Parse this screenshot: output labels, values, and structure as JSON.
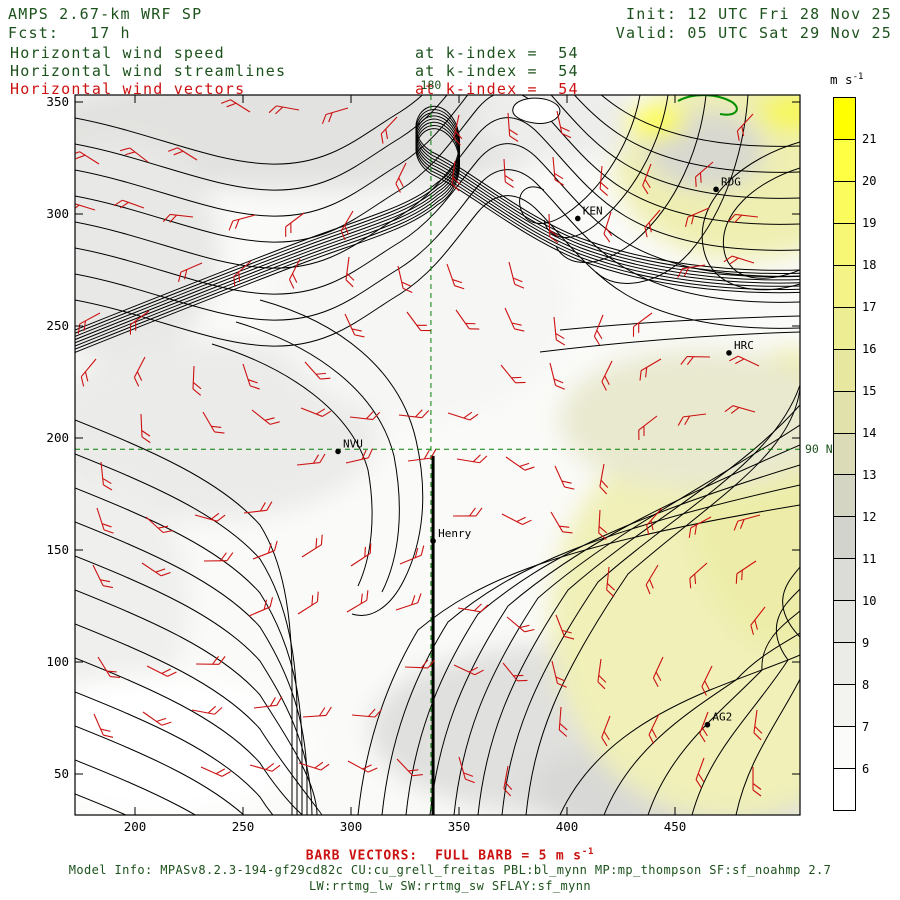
{
  "header": {
    "model_title": "AMPS 2.67-km WRF SP",
    "fcst_label": "Fcst:   17 h",
    "init_label": "Init: 12 UTC Fri 28 Nov 25",
    "valid_label": "Valid: 05 UTC Sat 29 Nov 25",
    "fields": [
      {
        "label": "Horizontal wind speed",
        "at_text": "at k-index =  54",
        "color": "#1c521c"
      },
      {
        "label": "Horizontal wind streamlines",
        "at_text": "at k-index =  54",
        "color": "#1c521c"
      },
      {
        "label": "Horizontal wind vectors",
        "at_text": "at k-index =  54",
        "color": "#cc1111"
      }
    ]
  },
  "colorbar": {
    "units_label": "m s",
    "units_exp": "-1",
    "tick_labels": [
      "6",
      "7",
      "8",
      "9",
      "10",
      "11",
      "12",
      "13",
      "14",
      "15",
      "16",
      "17",
      "18",
      "19",
      "20",
      "21"
    ],
    "segment_colors_bottom_to_top": [
      "#ffffff",
      "#fbfbf9",
      "#f3f3ef",
      "#ebebe7",
      "#e3e3df",
      "#dbdbd7",
      "#d3d3cd",
      "#d5d5c3",
      "#dbdbb7",
      "#e1e1ab",
      "#e7e79f",
      "#eded93",
      "#f3f387",
      "#f7f775",
      "#fbfb5d",
      "#ffff43",
      "#ffff00"
    ]
  },
  "footer": {
    "barb_legend_prefix": "BARB VECTORS:  FULL BARB = 5 m s",
    "barb_legend_exp": "-1",
    "model_info_line1": "Model Info: MPASv8.2.3-194-gf29cd82c CU:cu_grell_freitas PBL:bl_mynn MP:mp_thompson SF:sf_noahmp 2.7",
    "model_info_line2": "LW:rrtmg_lw SW:rrtmg_sw SFLAY:sf_mynn"
  },
  "chart_data": {
    "type": "map",
    "subtype": "wind-speed-shading-streamlines-barbs",
    "title": "AMPS 2.67-km WRF SP Horizontal wind at k-index = 54",
    "k_index": 54,
    "forecast_hour": 17,
    "init_time": "12 UTC Fri 28 Nov 25",
    "valid_time": "05 UTC Sat 29 Nov 25",
    "x_ticks": [
      200,
      250,
      300,
      350,
      400,
      450
    ],
    "y_ticks": [
      50,
      100,
      150,
      200,
      250,
      300,
      350
    ],
    "x_range": [
      172,
      508
    ],
    "y_range": [
      31,
      353
    ],
    "colorbar_levels_ms": [
      6,
      7,
      8,
      9,
      10,
      11,
      12,
      13,
      14,
      15,
      16,
      17,
      18,
      19,
      20,
      21
    ],
    "full_barb_ms": 5,
    "reference_lines": [
      {
        "label": "180",
        "orientation": "vertical",
        "x_grid": 337
      },
      {
        "label": "90 N",
        "orientation": "horizontal",
        "y_grid": 195
      }
    ],
    "cross_section_line": {
      "x_grid": 338,
      "y_grid_from": 31,
      "y_grid_to": 192
    },
    "stations": [
      {
        "name": "KEN",
        "x_grid": 405,
        "y_grid": 298
      },
      {
        "name": "RDG",
        "x_grid": 469,
        "y_grid": 311
      },
      {
        "name": "HRC",
        "x_grid": 475,
        "y_grid": 238
      },
      {
        "name": "NVU",
        "x_grid": 294,
        "y_grid": 194
      },
      {
        "name": "Henry",
        "x_grid": 338,
        "y_grid": 154
      },
      {
        "name": "AG2",
        "x_grid": 465,
        "y_grid": 72
      }
    ]
  }
}
